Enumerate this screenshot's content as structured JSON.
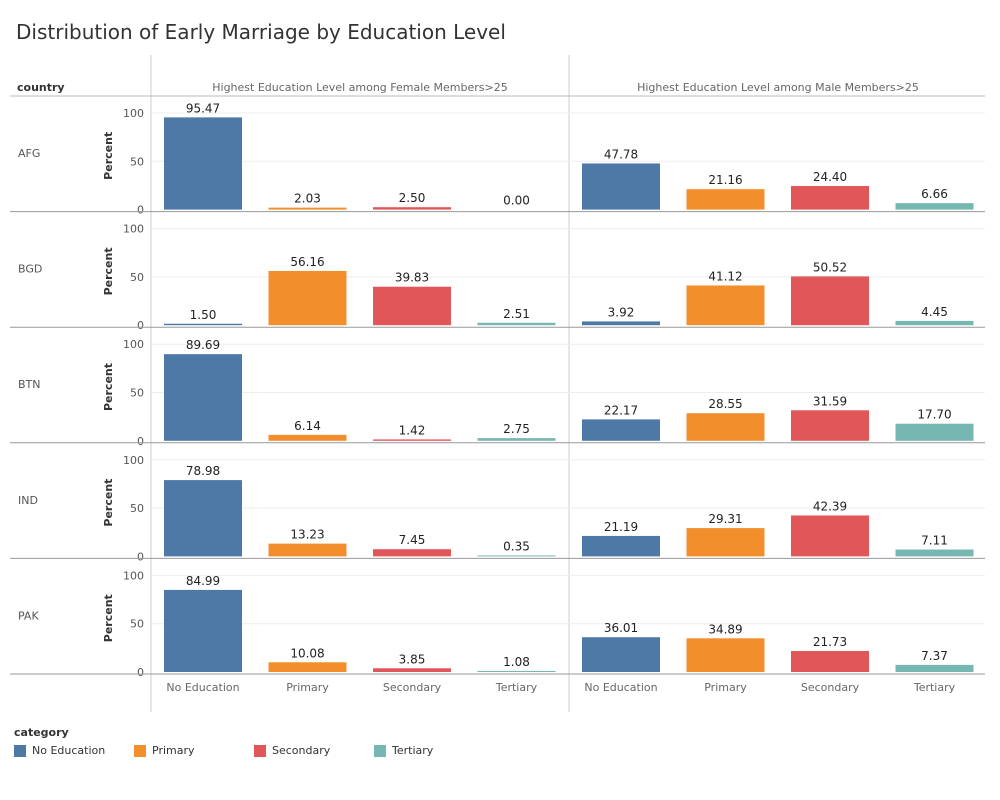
{
  "title": "Distribution of Early Marriage by Education Level",
  "row_header": "country",
  "legend_title": "category",
  "colors": {
    "No Education": "#4e79a7",
    "Primary": "#f28e2b",
    "Secondary": "#e15759",
    "Tertiary": "#76b7b2"
  },
  "chart_data": {
    "type": "bar",
    "ylabel": "Percent",
    "ylim": [
      0,
      100
    ],
    "yticks": [
      0,
      50,
      100
    ],
    "grid": true,
    "legend_position": "bottom-left",
    "categories": [
      "No Education",
      "Primary",
      "Secondary",
      "Tertiary"
    ],
    "columns": [
      "Highest Education Level among Female Members>25",
      "Highest Education Level among Male Members>25"
    ],
    "rows": [
      "AFG",
      "BGD",
      "BTN",
      "IND",
      "PAK"
    ],
    "values": {
      "AFG": [
        [
          95.47,
          2.03,
          2.5,
          0.0
        ],
        [
          47.78,
          21.16,
          24.4,
          6.66
        ]
      ],
      "BGD": [
        [
          1.5,
          56.16,
          39.83,
          2.51
        ],
        [
          3.92,
          41.12,
          50.52,
          4.45
        ]
      ],
      "BTN": [
        [
          89.69,
          6.14,
          1.42,
          2.75
        ],
        [
          22.17,
          28.55,
          31.59,
          17.7
        ]
      ],
      "IND": [
        [
          78.98,
          13.23,
          7.45,
          0.35
        ],
        [
          21.19,
          29.31,
          42.39,
          7.11
        ]
      ],
      "PAK": [
        [
          84.99,
          10.08,
          3.85,
          1.08
        ],
        [
          36.01,
          34.89,
          21.73,
          7.37
        ]
      ]
    }
  }
}
